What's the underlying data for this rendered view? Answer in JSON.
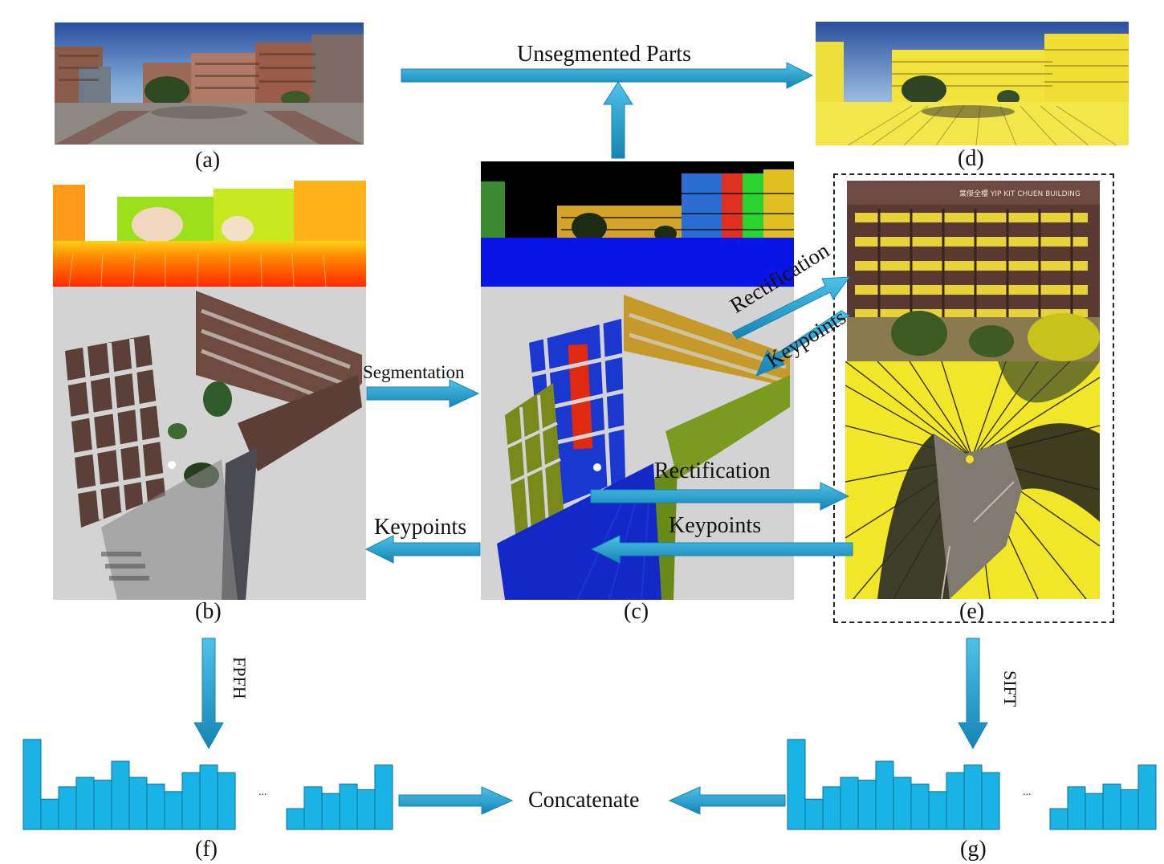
{
  "captions": {
    "a": "(a)",
    "b": "(b)",
    "c": "(c)",
    "d": "(d)",
    "e": "(e)",
    "f": "(f)",
    "g": "(g)"
  },
  "arrow_labels": {
    "unsegmented": "Unsegmented Parts",
    "segmentation": "Segmentation",
    "rectification_diag": "Rectification",
    "keypoints_diag": "Keypoints",
    "rectification_mid": "Rectification",
    "keypoints_mid": "Keypoints",
    "keypoints_left": "Keypoints",
    "fpfh": "FPFH",
    "sift": "SIFT",
    "concatenate": "Concatenate"
  },
  "ellipsis": "...",
  "building_sign": "葉傑全樓 YIP KIT CHUEN BUILDING",
  "histograms": {
    "fpfh_main": [
      95,
      32,
      45,
      55,
      52,
      72,
      55,
      48,
      40,
      60,
      68,
      60
    ],
    "fpfh_tail": [
      22,
      45,
      38,
      48,
      42,
      68
    ],
    "sift_main": [
      95,
      32,
      45,
      55,
      52,
      72,
      55,
      48,
      40,
      60,
      68,
      60
    ],
    "sift_tail": [
      22,
      45,
      38,
      48,
      42,
      68
    ]
  },
  "colors": {
    "arrow": "#1aa3d9",
    "arrow_dark": "#1784b3",
    "bar_fill": "#19b3e6",
    "bar_stroke": "#0f6f95",
    "dashed_box": "#222222"
  }
}
